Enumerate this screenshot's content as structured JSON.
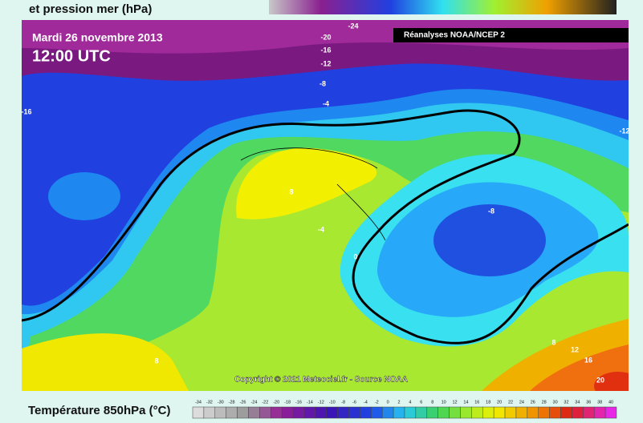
{
  "header": {
    "caption": "et pression mer (hPa)"
  },
  "map": {
    "date": "Mardi 26 novembre 2013",
    "time": "12:00 UTC",
    "badge": "Réanalyses NOAA/NCEP 2",
    "copyright": "Copyright © 2021 Meteociel.fr - Source NOAA",
    "contour_labels": [
      -24,
      -20,
      -16,
      -12,
      -8,
      -4,
      -16,
      -12,
      8,
      -4,
      0,
      -8,
      8,
      8,
      12,
      16,
      20
    ]
  },
  "legend": {
    "title": "Température 850hPa (°C)",
    "ticks": [
      -34,
      -32,
      -30,
      -28,
      -26,
      -24,
      -22,
      -20,
      -18,
      -16,
      -14,
      -12,
      -10,
      -8,
      -6,
      -4,
      -2,
      0,
      2,
      4,
      6,
      8,
      10,
      12,
      14,
      16,
      18,
      20,
      22,
      24,
      26,
      28,
      30,
      32,
      34,
      36,
      38,
      40
    ]
  }
}
